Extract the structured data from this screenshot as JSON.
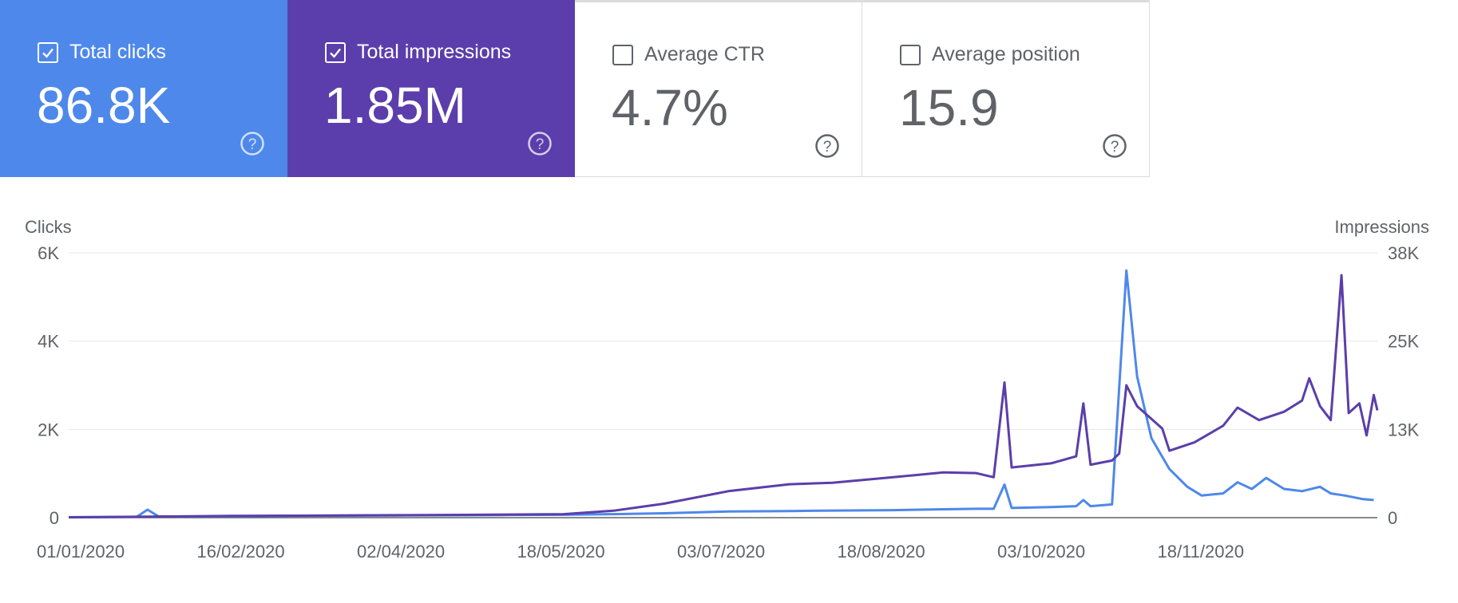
{
  "metrics": [
    {
      "label": "Total clicks",
      "value": "86.8K",
      "checked": true,
      "color": "#4e88ea"
    },
    {
      "label": "Total impressions",
      "value": "1.85M",
      "checked": true,
      "color": "#5b3eab"
    },
    {
      "label": "Average CTR",
      "value": "4.7%",
      "checked": false,
      "color": "#ffffff"
    },
    {
      "label": "Average position",
      "value": "15.9",
      "checked": false,
      "color": "#ffffff"
    }
  ],
  "chart_data": {
    "type": "line",
    "left_axis_title": "Clicks",
    "right_axis_title": "Impressions",
    "left_ticks": [
      "0",
      "2K",
      "4K",
      "6K"
    ],
    "right_ticks": [
      "0",
      "13K",
      "25K",
      "38K"
    ],
    "left_ylim": [
      0,
      6000
    ],
    "right_ylim": [
      0,
      38000
    ],
    "x_ticks": [
      "01/01/2020",
      "16/02/2020",
      "02/04/2020",
      "18/05/2020",
      "03/07/2020",
      "18/08/2020",
      "03/10/2020",
      "18/11/2020"
    ],
    "x_range": [
      "2020-01-01",
      "2020-12-31"
    ],
    "grid": true,
    "series": [
      {
        "name": "Total clicks",
        "axis": "left",
        "color": "#4e88ea",
        "points": [
          [
            "2020-01-01",
            10
          ],
          [
            "2020-01-10",
            15
          ],
          [
            "2020-01-20",
            20
          ],
          [
            "2020-01-23",
            180
          ],
          [
            "2020-01-26",
            30
          ],
          [
            "2020-02-01",
            25
          ],
          [
            "2020-02-16",
            30
          ],
          [
            "2020-03-01",
            40
          ],
          [
            "2020-03-15",
            45
          ],
          [
            "2020-04-02",
            50
          ],
          [
            "2020-04-18",
            55
          ],
          [
            "2020-05-01",
            60
          ],
          [
            "2020-05-18",
            65
          ],
          [
            "2020-06-01",
            80
          ],
          [
            "2020-06-15",
            100
          ],
          [
            "2020-07-03",
            140
          ],
          [
            "2020-07-20",
            150
          ],
          [
            "2020-08-01",
            160
          ],
          [
            "2020-08-18",
            170
          ],
          [
            "2020-09-01",
            190
          ],
          [
            "2020-09-10",
            200
          ],
          [
            "2020-09-15",
            200
          ],
          [
            "2020-09-18",
            750
          ],
          [
            "2020-09-20",
            220
          ],
          [
            "2020-10-01",
            240
          ],
          [
            "2020-10-08",
            260
          ],
          [
            "2020-10-10",
            400
          ],
          [
            "2020-10-12",
            260
          ],
          [
            "2020-10-18",
            300
          ],
          [
            "2020-10-22",
            5600
          ],
          [
            "2020-10-25",
            3200
          ],
          [
            "2020-10-29",
            1800
          ],
          [
            "2020-11-03",
            1100
          ],
          [
            "2020-11-08",
            700
          ],
          [
            "2020-11-12",
            500
          ],
          [
            "2020-11-18",
            550
          ],
          [
            "2020-11-22",
            800
          ],
          [
            "2020-11-26",
            650
          ],
          [
            "2020-11-30",
            900
          ],
          [
            "2020-12-05",
            650
          ],
          [
            "2020-12-10",
            600
          ],
          [
            "2020-12-15",
            700
          ],
          [
            "2020-12-18",
            550
          ],
          [
            "2020-12-22",
            500
          ],
          [
            "2020-12-27",
            420
          ],
          [
            "2020-12-30",
            400
          ]
        ]
      },
      {
        "name": "Total impressions",
        "axis": "right",
        "color": "#5b3eab",
        "points": [
          [
            "2020-01-01",
            50
          ],
          [
            "2020-01-23",
            150
          ],
          [
            "2020-02-16",
            250
          ],
          [
            "2020-03-10",
            300
          ],
          [
            "2020-04-02",
            350
          ],
          [
            "2020-04-20",
            400
          ],
          [
            "2020-05-18",
            500
          ],
          [
            "2020-06-01",
            1000
          ],
          [
            "2020-06-15",
            2000
          ],
          [
            "2020-07-03",
            3800
          ],
          [
            "2020-07-20",
            4800
          ],
          [
            "2020-08-01",
            5000
          ],
          [
            "2020-08-18",
            5800
          ],
          [
            "2020-09-01",
            6500
          ],
          [
            "2020-09-10",
            6400
          ],
          [
            "2020-09-15",
            5800
          ],
          [
            "2020-09-18",
            19400
          ],
          [
            "2020-09-20",
            7200
          ],
          [
            "2020-10-01",
            7800
          ],
          [
            "2020-10-08",
            8800
          ],
          [
            "2020-10-10",
            16400
          ],
          [
            "2020-10-12",
            7600
          ],
          [
            "2020-10-18",
            8200
          ],
          [
            "2020-10-20",
            9200
          ],
          [
            "2020-10-22",
            19000
          ],
          [
            "2020-10-25",
            16000
          ],
          [
            "2020-11-01",
            12800
          ],
          [
            "2020-11-03",
            9600
          ],
          [
            "2020-11-10",
            10800
          ],
          [
            "2020-11-18",
            13200
          ],
          [
            "2020-11-22",
            15800
          ],
          [
            "2020-11-28",
            14000
          ],
          [
            "2020-12-05",
            15200
          ],
          [
            "2020-12-10",
            16800
          ],
          [
            "2020-12-12",
            20000
          ],
          [
            "2020-12-15",
            16000
          ],
          [
            "2020-12-18",
            14000
          ],
          [
            "2020-12-21",
            34800
          ],
          [
            "2020-12-23",
            15000
          ],
          [
            "2020-12-26",
            16400
          ],
          [
            "2020-12-28",
            11800
          ],
          [
            "2020-12-30",
            17600
          ],
          [
            "2020-12-31",
            15400
          ]
        ]
      }
    ]
  }
}
